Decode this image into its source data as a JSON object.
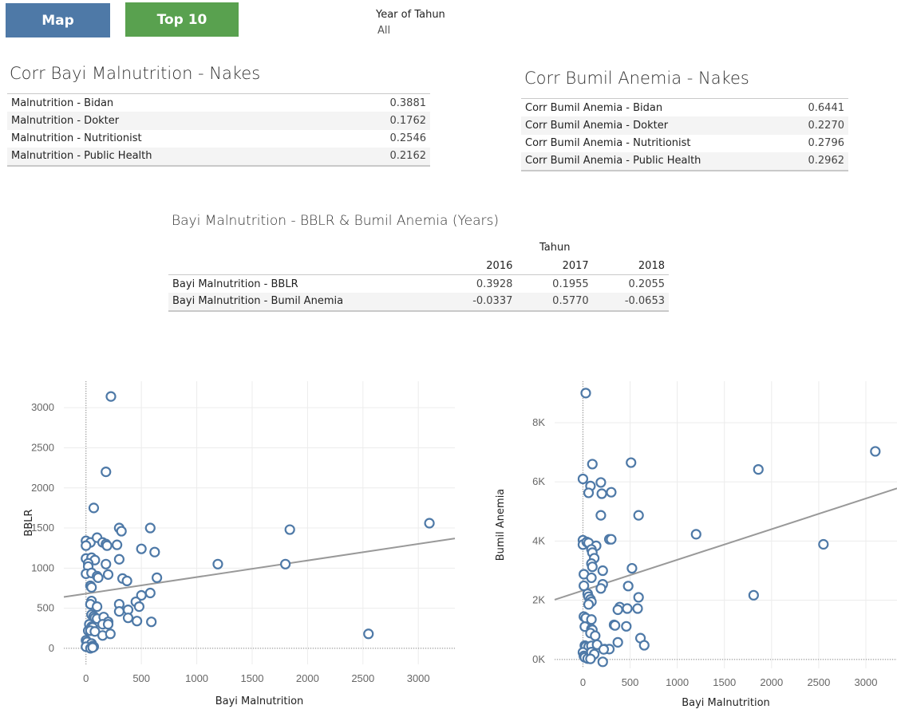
{
  "nav": {
    "map_label": "Map",
    "top10_label": "Top 10"
  },
  "filter": {
    "title": "Year of Tahun",
    "value": "All"
  },
  "left_table": {
    "title": "Corr Bayi Malnutrition - Nakes",
    "rows": [
      {
        "label": "Malnutrition - Bidan",
        "value": "0.3881"
      },
      {
        "label": "Malnutrition - Dokter",
        "value": "0.1762"
      },
      {
        "label": "Malnutrition - Nutritionist",
        "value": "0.2546"
      },
      {
        "label": "Malnutrition - Public Health",
        "value": "0.2162"
      }
    ]
  },
  "right_table": {
    "title": "Corr Bumil Anemia - Nakes",
    "rows": [
      {
        "label": "Corr Bumil Anemia - Bidan",
        "value": "0.6441"
      },
      {
        "label": "Corr Bumil Anemia - Dokter",
        "value": "0.2270"
      },
      {
        "label": "Corr Bumil Anemia - Nutritionist",
        "value": "0.2796"
      },
      {
        "label": "Corr Bumil Anemia - Public Health",
        "value": "0.2962"
      }
    ]
  },
  "years_table": {
    "title": "Bayi Malnutrition - BBLR & Bumil Anemia (Years)",
    "column_group": "Tahun",
    "years": [
      "2016",
      "2017",
      "2018"
    ],
    "rows": [
      {
        "label": "Bayi Malnutrition - BBLR",
        "values": [
          "0.3928",
          "0.1955",
          "0.2055"
        ]
      },
      {
        "label": "Bayi Malnutrition - Bumil Anemia",
        "values": [
          "-0.0337",
          "0.5770",
          "-0.0653"
        ]
      }
    ]
  },
  "colors": {
    "marker": "#4e79a7",
    "trend": "#999999",
    "grid": "#ececec"
  },
  "chart_data": [
    {
      "type": "scatter",
      "xlabel": "Bayi Malnutrition",
      "ylabel": "BBLR",
      "xlim": [
        -200,
        3330
      ],
      "ylim": [
        -200,
        3330
      ],
      "xticks": [
        0,
        500,
        1000,
        1500,
        2000,
        2500,
        3000
      ],
      "yticks": [
        0,
        500,
        1000,
        1500,
        2000,
        2500,
        3000
      ],
      "ytick_labels": [
        "0",
        "500",
        "1000",
        "1500",
        "2000",
        "2500",
        "3000"
      ],
      "trend_line": [
        [
          -200,
          640
        ],
        [
          3330,
          1370
        ]
      ],
      "points": [
        [
          225,
          3140
        ],
        [
          180,
          2200
        ],
        [
          70,
          1750
        ],
        [
          300,
          1500
        ],
        [
          320,
          1460
        ],
        [
          580,
          1500
        ],
        [
          1840,
          1480
        ],
        [
          3100,
          1560
        ],
        [
          0,
          1340
        ],
        [
          40,
          1320
        ],
        [
          100,
          1380
        ],
        [
          150,
          1320
        ],
        [
          180,
          1300
        ],
        [
          190,
          1280
        ],
        [
          280,
          1290
        ],
        [
          500,
          1240
        ],
        [
          620,
          1200
        ],
        [
          0,
          1280
        ],
        [
          0,
          1120
        ],
        [
          50,
          1130
        ],
        [
          80,
          1100
        ],
        [
          300,
          1110
        ],
        [
          20,
          1060
        ],
        [
          20,
          1020
        ],
        [
          180,
          1050
        ],
        [
          1190,
          1050
        ],
        [
          1800,
          1050
        ],
        [
          0,
          930
        ],
        [
          50,
          940
        ],
        [
          100,
          900
        ],
        [
          110,
          880
        ],
        [
          200,
          920
        ],
        [
          330,
          870
        ],
        [
          370,
          840
        ],
        [
          640,
          880
        ],
        [
          40,
          780
        ],
        [
          50,
          760
        ],
        [
          500,
          660
        ],
        [
          580,
          690
        ],
        [
          50,
          590
        ],
        [
          40,
          550
        ],
        [
          100,
          520
        ],
        [
          300,
          550
        ],
        [
          450,
          580
        ],
        [
          300,
          460
        ],
        [
          380,
          480
        ],
        [
          480,
          520
        ],
        [
          50,
          420
        ],
        [
          70,
          400
        ],
        [
          80,
          380
        ],
        [
          100,
          370
        ],
        [
          160,
          390
        ],
        [
          200,
          330
        ],
        [
          380,
          380
        ],
        [
          460,
          340
        ],
        [
          590,
          330
        ],
        [
          30,
          300
        ],
        [
          50,
          270
        ],
        [
          60,
          260
        ],
        [
          150,
          300
        ],
        [
          200,
          300
        ],
        [
          20,
          220
        ],
        [
          40,
          220
        ],
        [
          80,
          210
        ],
        [
          150,
          160
        ],
        [
          220,
          180
        ],
        [
          2550,
          180
        ],
        [
          0,
          100
        ],
        [
          10,
          80
        ],
        [
          50,
          60
        ],
        [
          60,
          30
        ],
        [
          70,
          20
        ],
        [
          0,
          20
        ],
        [
          40,
          0
        ],
        [
          60,
          10
        ]
      ]
    },
    {
      "type": "scatter",
      "xlabel": "Bayi Malnutrition",
      "ylabel": "Bumil Anemia",
      "xlim": [
        -300,
        3330
      ],
      "ylim": [
        -300,
        9400
      ],
      "xticks": [
        0,
        500,
        1000,
        1500,
        2000,
        2500,
        3000
      ],
      "yticks": [
        0,
        2000,
        4000,
        6000,
        8000
      ],
      "ytick_labels": [
        "0K",
        "2K",
        "4K",
        "6K",
        "8K"
      ],
      "trend_line": [
        [
          -300,
          2020
        ],
        [
          3330,
          5780
        ]
      ],
      "points": [
        [
          30,
          9000
        ],
        [
          100,
          6600
        ],
        [
          510,
          6650
        ],
        [
          3100,
          7030
        ],
        [
          1860,
          6420
        ],
        [
          0,
          6100
        ],
        [
          80,
          5860
        ],
        [
          190,
          5980
        ],
        [
          60,
          5630
        ],
        [
          200,
          5600
        ],
        [
          300,
          5650
        ],
        [
          190,
          4870
        ],
        [
          590,
          4870
        ],
        [
          1200,
          4230
        ],
        [
          2550,
          3890
        ],
        [
          0,
          4030
        ],
        [
          0,
          3880
        ],
        [
          40,
          3970
        ],
        [
          60,
          3940
        ],
        [
          140,
          3840
        ],
        [
          280,
          4060
        ],
        [
          300,
          4060
        ],
        [
          90,
          3720
        ],
        [
          100,
          3610
        ],
        [
          120,
          3420
        ],
        [
          90,
          3240
        ],
        [
          100,
          3130
        ],
        [
          210,
          3000
        ],
        [
          520,
          3080
        ],
        [
          10,
          2880
        ],
        [
          90,
          2760
        ],
        [
          210,
          2540
        ],
        [
          480,
          2480
        ],
        [
          10,
          2490
        ],
        [
          190,
          2400
        ],
        [
          50,
          2220
        ],
        [
          60,
          2120
        ],
        [
          80,
          2030
        ],
        [
          90,
          1950
        ],
        [
          60,
          1860
        ],
        [
          590,
          2100
        ],
        [
          1810,
          2170
        ],
        [
          390,
          1770
        ],
        [
          470,
          1720
        ],
        [
          580,
          1720
        ],
        [
          370,
          1680
        ],
        [
          10,
          1450
        ],
        [
          30,
          1400
        ],
        [
          90,
          1350
        ],
        [
          20,
          1110
        ],
        [
          90,
          1030
        ],
        [
          100,
          1000
        ],
        [
          330,
          1170
        ],
        [
          340,
          1150
        ],
        [
          460,
          1120
        ],
        [
          80,
          890
        ],
        [
          130,
          800
        ],
        [
          610,
          720
        ],
        [
          20,
          470
        ],
        [
          30,
          440
        ],
        [
          60,
          430
        ],
        [
          90,
          460
        ],
        [
          150,
          500
        ],
        [
          370,
          580
        ],
        [
          650,
          480
        ],
        [
          0,
          240
        ],
        [
          10,
          120
        ],
        [
          20,
          70
        ],
        [
          50,
          30
        ],
        [
          90,
          250
        ],
        [
          120,
          180
        ],
        [
          230,
          350
        ],
        [
          280,
          350
        ],
        [
          220,
          340
        ],
        [
          80,
          20
        ],
        [
          210,
          -80
        ]
      ]
    }
  ]
}
